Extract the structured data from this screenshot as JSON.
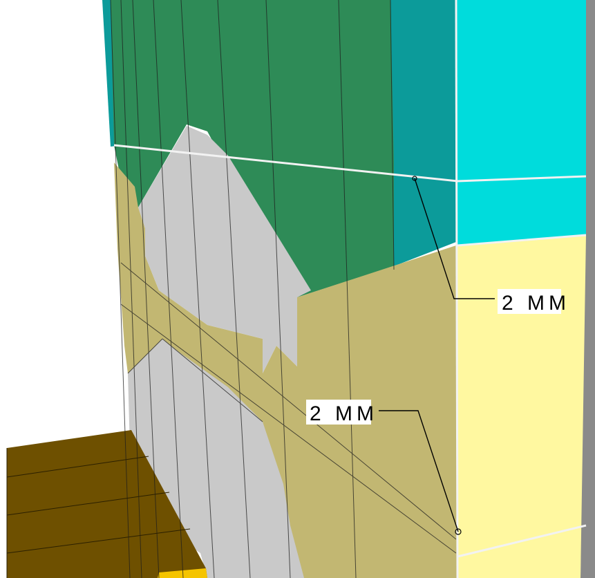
{
  "annotations": [
    {
      "id": "upper",
      "text": "2 MM"
    },
    {
      "id": "lower",
      "text": "2 MM"
    }
  ],
  "colors": {
    "green": "#2e8b57",
    "dark_teal": "#0c9b9a",
    "cyan": "#00dcdc",
    "gray": "#c9c9c9",
    "khaki": "#c2b772",
    "pale_yellow": "#fff8a0",
    "brown": "#6e5000",
    "gold": "#f5c400",
    "side_gray": "#8a8a8a"
  }
}
